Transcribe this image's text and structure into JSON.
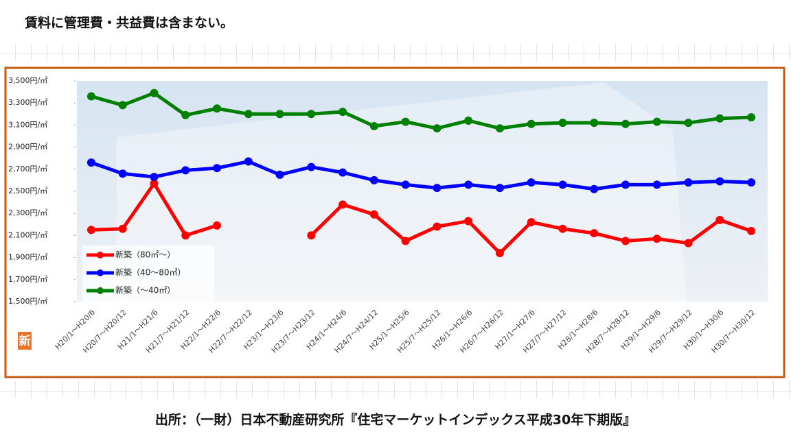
{
  "header": {
    "note": "賃料に管理費・共益費は含まない。"
  },
  "chart_data": {
    "type": "line",
    "badge": "新",
    "categories": [
      "H20/1～H20/6",
      "H20/7～H20/12",
      "H21/1～H21/6",
      "H21/7～H21/12",
      "H22/1～H22/6",
      "H22/7～H22/12",
      "H23/1～H23/6",
      "H23/7～H23/12",
      "H24/1～H24/6",
      "H24/7～H24/12",
      "H25/1～H25/6",
      "H25/7～H25/12",
      "H26/1～H26/6",
      "H26/7～H26/12",
      "H27/1～H27/6",
      "H27/7～H27/12",
      "H28/1～H28/6",
      "H28/7～H28/12",
      "H29/1～H29/6",
      "H29/7～H29/12",
      "H30/1～H30/6",
      "H30/7～H30/12"
    ],
    "series": [
      {
        "name": "新築（80㎡～）",
        "color": "#ff0000",
        "values": [
          2150,
          2160,
          2570,
          2100,
          2190,
          null,
          null,
          2100,
          2380,
          2290,
          2050,
          2180,
          2230,
          1940,
          2220,
          2160,
          2120,
          2050,
          2070,
          2030,
          2240,
          2140
        ]
      },
      {
        "name": "新築（40～80㎡）",
        "color": "#0000ff",
        "values": [
          2760,
          2660,
          2630,
          2690,
          2710,
          2770,
          2650,
          2720,
          2670,
          2600,
          2560,
          2530,
          2560,
          2530,
          2580,
          2560,
          2520,
          2560,
          2560,
          2580,
          2590,
          2580
        ]
      },
      {
        "name": "新築（～40㎡）",
        "color": "#008000",
        "values": [
          3360,
          3280,
          3390,
          3190,
          3250,
          3200,
          3200,
          3200,
          3220,
          3090,
          3130,
          3070,
          3140,
          3070,
          3110,
          3120,
          3120,
          3110,
          3130,
          3120,
          3160,
          3170
        ]
      }
    ],
    "ylim": [
      1500,
      3500
    ],
    "yticks": [
      {
        "value": 1500,
        "label": "1,500円/㎡"
      },
      {
        "value": 1700,
        "label": "1,700円/㎡"
      },
      {
        "value": 1900,
        "label": "1,900円/㎡"
      },
      {
        "value": 2100,
        "label": "2,100円/㎡"
      },
      {
        "value": 2300,
        "label": "2,300円/㎡"
      },
      {
        "value": 2500,
        "label": "2,500円/㎡"
      },
      {
        "value": 2700,
        "label": "2,700円/㎡"
      },
      {
        "value": 2900,
        "label": "2,900円/㎡"
      },
      {
        "value": 3100,
        "label": "3,100円/㎡"
      },
      {
        "value": 3300,
        "label": "3,300円/㎡"
      },
      {
        "value": 3500,
        "label": "3,500円/㎡"
      }
    ],
    "legend": "lower left"
  },
  "footer": {
    "source": "出所：（一財）日本不動産研究所『住宅マーケットインデックス平成30年下期版』"
  }
}
